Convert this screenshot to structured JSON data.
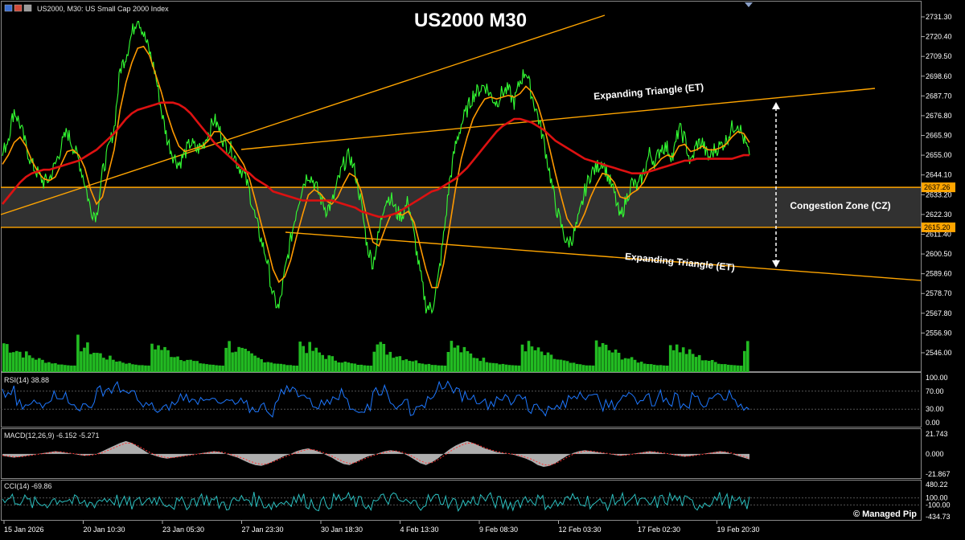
{
  "window": {
    "symbol_caption": "US2000, M30:  US Small Cap 2000 Index",
    "title": "US2000 M30",
    "watermark": "© Managed Pip"
  },
  "colors": {
    "price": "#33ff33",
    "ma_fast": "#ff9900",
    "ma_slow": "#dd1111",
    "trendline": "#ffa500",
    "rsi": "#1e78ff",
    "macd": "#cccccc",
    "cci": "#2abfbf",
    "volume": "#22bb22"
  },
  "annotations": {
    "upper_et": "Expanding Triangle (ET)",
    "lower_et": "Expanding Triangle (ET)",
    "congestion": "Congestion Zone (CZ)"
  },
  "chart_data": [
    {
      "type": "line",
      "panel": "price",
      "title": "US2000 M30",
      "y_ticks": [
        "2731.30",
        "2720.40",
        "2709.50",
        "2698.60",
        "2687.70",
        "2676.80",
        "2665.90",
        "2655.00",
        "2644.10",
        "2633.20",
        "2622.30",
        "2611.40",
        "2600.50",
        "2589.60",
        "2578.70",
        "2567.80",
        "2556.90",
        "2546.00"
      ],
      "ylim": [
        2546.0,
        2731.3
      ],
      "x_ticks": [
        "15 Jan 2026",
        "20 Jan 10:30",
        "23 Jan 05:30",
        "27 Jan 23:30",
        "30 Jan 18:30",
        "4 Feb 13:30",
        "9 Feb 08:30",
        "12 Feb 03:30",
        "17 Feb 02:30",
        "19 Feb 20:30"
      ],
      "levels": [
        {
          "name": "resistance",
          "value": 2637.26,
          "label": "2637.26"
        },
        {
          "name": "support",
          "value": 2615.2,
          "label": "2615.20"
        }
      ],
      "series": [
        {
          "values": [
            2655,
            2665,
            2680,
            2672,
            2660,
            2650,
            2645,
            2640,
            2642,
            2650,
            2660,
            2668,
            2660,
            2652,
            2640,
            2625,
            2622,
            2645,
            2658,
            2670,
            2702,
            2710,
            2722,
            2732,
            2722,
            2712,
            2700,
            2680,
            2664,
            2655,
            2650,
            2656,
            2662,
            2658,
            2660,
            2667,
            2675,
            2668,
            2660,
            2658,
            2650,
            2645,
            2635,
            2620,
            2608,
            2597,
            2577,
            2570,
            2590,
            2608,
            2625,
            2638,
            2645,
            2640,
            2632,
            2625,
            2628,
            2640,
            2650,
            2655,
            2645,
            2628,
            2605,
            2595,
            2612,
            2630,
            2632,
            2623,
            2622,
            2630,
            2610,
            2590,
            2572,
            2570,
            2585,
            2610,
            2640,
            2660,
            2672,
            2680,
            2688,
            2691,
            2694,
            2688,
            2684,
            2690,
            2691,
            2684,
            2696,
            2702,
            2688,
            2677,
            2663,
            2646,
            2628,
            2616,
            2606,
            2610,
            2620,
            2635,
            2645,
            2648,
            2652,
            2643,
            2634,
            2620,
            2630,
            2640,
            2637,
            2645,
            2656,
            2651,
            2660,
            2659,
            2654,
            2670,
            2664,
            2650,
            2661,
            2662,
            2653,
            2658,
            2660,
            2663,
            2670,
            2673,
            2664,
            2655
          ]
        },
        {
          "values": [
            2650,
            2655,
            2662,
            2665,
            2660,
            2652,
            2646,
            2642,
            2641,
            2643,
            2650,
            2657,
            2658,
            2655,
            2648,
            2636,
            2628,
            2632,
            2645,
            2658,
            2680,
            2695,
            2706,
            2714,
            2715,
            2710,
            2700,
            2690,
            2678,
            2668,
            2660,
            2657,
            2658,
            2659,
            2660,
            2663,
            2668,
            2668,
            2664,
            2660,
            2655,
            2650,
            2642,
            2630,
            2617,
            2605,
            2592,
            2585,
            2588,
            2597,
            2610,
            2622,
            2633,
            2636,
            2634,
            2630,
            2628,
            2632,
            2639,
            2645,
            2643,
            2635,
            2620,
            2607,
            2605,
            2614,
            2622,
            2623,
            2622,
            2624,
            2618,
            2605,
            2592,
            2582,
            2582,
            2595,
            2615,
            2636,
            2653,
            2665,
            2675,
            2681,
            2686,
            2687,
            2686,
            2687,
            2688,
            2687,
            2689,
            2693,
            2690,
            2683,
            2672,
            2659,
            2645,
            2632,
            2620,
            2615,
            2616,
            2623,
            2632,
            2639,
            2645,
            2644,
            2640,
            2632,
            2631,
            2634,
            2636,
            2640,
            2647,
            2649,
            2653,
            2655,
            2654,
            2660,
            2661,
            2657,
            2658,
            2660,
            2658,
            2658,
            2659,
            2661,
            2665,
            2668,
            2667,
            2662
          ]
        },
        {
          "values": [
            2628,
            2632,
            2636,
            2640,
            2643,
            2645,
            2646,
            2647,
            2647,
            2648,
            2649,
            2650,
            2651,
            2652,
            2654,
            2656,
            2658,
            2661,
            2664,
            2667,
            2671,
            2675,
            2678,
            2680,
            2681,
            2682,
            2683,
            2684,
            2684,
            2684,
            2683,
            2681,
            2678,
            2674,
            2670,
            2666,
            2662,
            2659,
            2656,
            2653,
            2650,
            2647,
            2645,
            2642,
            2640,
            2638,
            2635,
            2634,
            2633,
            2632,
            2631,
            2630,
            2630,
            2630,
            2630,
            2630,
            2630,
            2629,
            2628,
            2627,
            2626,
            2624,
            2623,
            2622,
            2621,
            2621,
            2622,
            2623,
            2625,
            2627,
            2629,
            2631,
            2633,
            2635,
            2636,
            2638,
            2640,
            2642,
            2645,
            2648,
            2652,
            2656,
            2660,
            2664,
            2668,
            2671,
            2673,
            2675,
            2675,
            2674,
            2673,
            2671,
            2669,
            2666,
            2663,
            2661,
            2659,
            2657,
            2655,
            2653,
            2652,
            2651,
            2650,
            2649,
            2648,
            2647,
            2646,
            2645,
            2645,
            2645,
            2646,
            2647,
            2648,
            2649,
            2650,
            2651,
            2652,
            2652,
            2653,
            2653,
            2653,
            2653,
            2653,
            2653,
            2653,
            2654,
            2655,
            2655
          ]
        }
      ]
    },
    {
      "type": "line",
      "panel": "rsi",
      "label": "RSI(14) 38.88",
      "y_ticks": [
        "100.00",
        "70.00",
        "30.00",
        "0.00"
      ],
      "ylim": [
        0,
        100
      ]
    },
    {
      "type": "area",
      "panel": "macd",
      "label": "MACD(12,26,9) -6.152 -5.271",
      "y_ticks": [
        "21.743",
        "0.000",
        "-21.867"
      ],
      "ylim": [
        -21.867,
        21.743
      ],
      "values": [
        -2,
        -3,
        -4,
        -3,
        -2,
        -1,
        0,
        1,
        2,
        3,
        2,
        1,
        0,
        -1,
        -2,
        -1,
        0,
        3,
        6,
        9,
        12,
        14,
        12,
        8,
        4,
        0,
        -2,
        -4,
        -5,
        -4,
        -3,
        -2,
        -1,
        0,
        1,
        2,
        3,
        2,
        0,
        -2,
        -4,
        -7,
        -10,
        -12,
        -13,
        -11,
        -8,
        -5,
        -2,
        0,
        3,
        5,
        6,
        4,
        2,
        -1,
        -4,
        -8,
        -11,
        -12,
        -9,
        -6,
        -3,
        -1,
        1,
        3,
        4,
        3,
        1,
        -2,
        -6,
        -10,
        -12,
        -9,
        -5,
        0,
        5,
        9,
        12,
        14,
        12,
        9,
        6,
        4,
        2,
        1,
        0,
        -1,
        -3,
        -5,
        -8,
        -12,
        -14,
        -13,
        -10,
        -6,
        -2,
        1,
        3,
        4,
        3,
        2,
        1,
        0,
        -1,
        -2,
        -1,
        0,
        1,
        2,
        3,
        2,
        1,
        0,
        -1,
        -2,
        -3,
        -2,
        -1,
        0,
        1,
        2,
        3,
        2,
        0,
        -2,
        -4,
        -6
      ]
    },
    {
      "type": "line",
      "panel": "cci",
      "label": "CCI(14) -69.86",
      "y_ticks": [
        "480.22",
        "100.00",
        "-100.00",
        "-434.73"
      ],
      "ylim": [
        -434.73,
        480.22
      ]
    }
  ]
}
